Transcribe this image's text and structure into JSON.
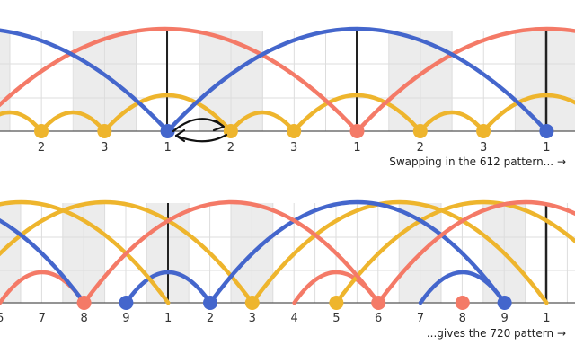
{
  "colors": {
    "red": "#f47a67",
    "blue": "#4466cc",
    "yellow": "#eeb52d",
    "grid": "#dddddd",
    "shade": "#ececec",
    "axis": "#222222"
  },
  "diagrams": [
    {
      "name": "pattern-612",
      "tick_labels": [
        "2",
        "3",
        "1",
        "2",
        "3",
        "1",
        "2",
        "3",
        "1"
      ],
      "caption": "Swapping in the 612 pattern... →"
    },
    {
      "name": "pattern-720",
      "tick_labels": [
        "6",
        "7",
        "8",
        "9",
        "1",
        "2",
        "3",
        "4",
        "5",
        "6",
        "7",
        "8",
        "9",
        "1"
      ],
      "caption": "...gives the 720 pattern →"
    }
  ]
}
